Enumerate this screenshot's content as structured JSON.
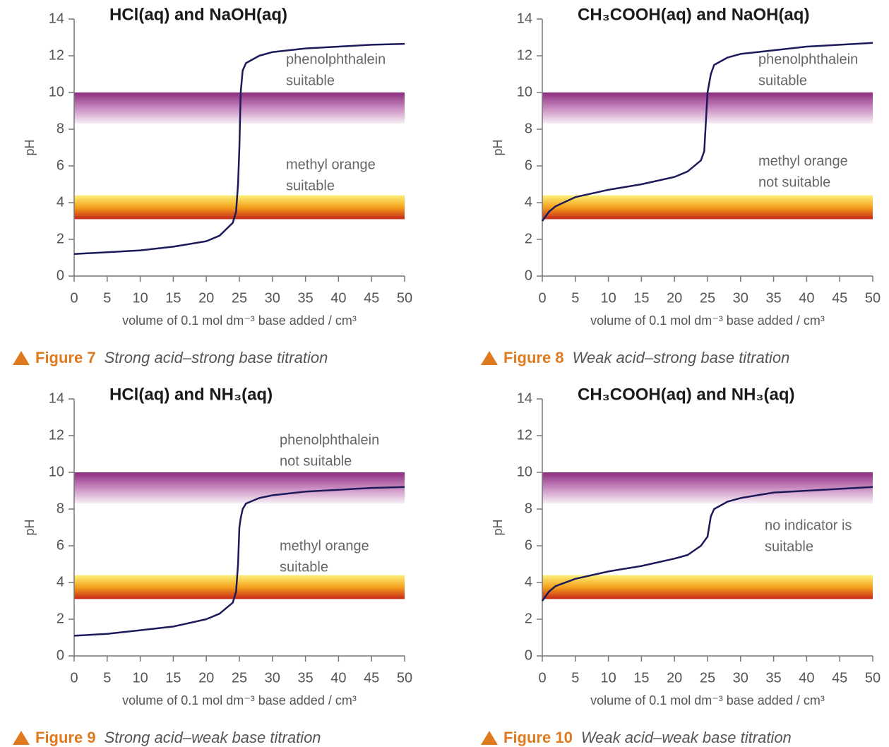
{
  "chart_data": [
    {
      "type": "line",
      "title": "HCl(aq) and NaOH(aq)",
      "xlabel": "volume of 0.1 mol dm⁻³ base added / cm³",
      "ylabel": "pH",
      "xlim": [
        0,
        50
      ],
      "ylim": [
        0,
        14
      ],
      "xticks": [
        0,
        5,
        10,
        15,
        20,
        25,
        30,
        35,
        40,
        45,
        50
      ],
      "yticks": [
        0,
        2,
        4,
        6,
        8,
        10,
        12,
        14
      ],
      "x": [
        0,
        5,
        10,
        15,
        20,
        22,
        24,
        24.5,
        24.8,
        25,
        25.2,
        25.5,
        26,
        28,
        30,
        35,
        40,
        45,
        50
      ],
      "series": [
        {
          "color": "#1d1a5a",
          "values": [
            1.2,
            1.3,
            1.4,
            1.6,
            1.9,
            2.2,
            2.9,
            3.5,
            5,
            7,
            10,
            11.2,
            11.6,
            12.0,
            12.2,
            12.4,
            12.5,
            12.6,
            12.65
          ]
        }
      ],
      "bands": [
        {
          "range": [
            8.3,
            10
          ],
          "colors": [
            "#8b2c7f",
            "#c98bc0",
            "#f8f0f6"
          ]
        },
        {
          "range": [
            3.1,
            4.4
          ],
          "colors": [
            "#fdf07a",
            "#f4a21c",
            "#c8281a"
          ]
        }
      ],
      "annotations": [
        [
          "phenolphthalein",
          "suitable"
        ],
        [
          "methyl orange",
          "suitable"
        ]
      ],
      "figure": "Figure 7",
      "caption": "Strong acid–strong base titration"
    },
    {
      "type": "line",
      "title": "CH₃COOH(aq) and NaOH(aq)",
      "xlabel": "volume of 0.1 mol dm⁻³ base added / cm³",
      "ylabel": "pH",
      "xlim": [
        0,
        50
      ],
      "ylim": [
        0,
        14
      ],
      "xticks": [
        0,
        5,
        10,
        15,
        20,
        25,
        30,
        35,
        40,
        45,
        50
      ],
      "yticks": [
        0,
        2,
        4,
        6,
        8,
        10,
        12,
        14
      ],
      "x": [
        0,
        1,
        2,
        5,
        10,
        15,
        20,
        22,
        24,
        24.5,
        25,
        25.5,
        26,
        28,
        30,
        35,
        40,
        45,
        50
      ],
      "series": [
        {
          "color": "#1d1a5a",
          "values": [
            3.0,
            3.5,
            3.8,
            4.3,
            4.7,
            5.0,
            5.4,
            5.7,
            6.3,
            6.8,
            10,
            11,
            11.5,
            11.9,
            12.1,
            12.3,
            12.5,
            12.6,
            12.7
          ]
        }
      ],
      "bands": [
        {
          "range": [
            8.3,
            10
          ],
          "colors": [
            "#8b2c7f",
            "#c98bc0",
            "#f8f0f6"
          ]
        },
        {
          "range": [
            3.1,
            4.4
          ],
          "colors": [
            "#fdf07a",
            "#f4a21c",
            "#c8281a"
          ]
        }
      ],
      "annotations": [
        [
          "phenolphthalein",
          "suitable"
        ],
        [
          "methyl orange",
          "not suitable"
        ]
      ],
      "figure": "Figure 8",
      "caption": "Weak acid–strong base titration"
    },
    {
      "type": "line",
      "title": "HCl(aq) and NH₃(aq)",
      "xlabel": "volume of 0.1 mol dm⁻³ base added / cm³",
      "ylabel": "pH",
      "xlim": [
        0,
        50
      ],
      "ylim": [
        0,
        14
      ],
      "xticks": [
        0,
        5,
        10,
        15,
        20,
        25,
        30,
        35,
        40,
        45,
        50
      ],
      "yticks": [
        0,
        2,
        4,
        6,
        8,
        10,
        12,
        14
      ],
      "x": [
        0,
        5,
        10,
        15,
        20,
        22,
        24,
        24.5,
        24.8,
        25,
        25.2,
        25.5,
        26,
        28,
        30,
        35,
        40,
        45,
        50
      ],
      "series": [
        {
          "color": "#1d1a5a",
          "values": [
            1.1,
            1.2,
            1.4,
            1.6,
            2.0,
            2.3,
            2.9,
            3.5,
            5,
            7,
            7.5,
            8.0,
            8.3,
            8.6,
            8.75,
            8.95,
            9.05,
            9.15,
            9.2
          ]
        }
      ],
      "bands": [
        {
          "range": [
            8.3,
            10
          ],
          "colors": [
            "#8b2c7f",
            "#c98bc0",
            "#f8f0f6"
          ]
        },
        {
          "range": [
            3.1,
            4.4
          ],
          "colors": [
            "#fdf07a",
            "#f4a21c",
            "#c8281a"
          ]
        }
      ],
      "annotations": [
        [
          "phenolphthalein",
          "not suitable"
        ],
        [
          "methyl orange",
          "suitable"
        ]
      ],
      "figure": "Figure 9",
      "caption": "Strong acid–weak base titration"
    },
    {
      "type": "line",
      "title": "CH₃COOH(aq) and NH₃(aq)",
      "xlabel": "volume of 0.1 mol dm⁻³ base added / cm³",
      "ylabel": "pH",
      "xlim": [
        0,
        50
      ],
      "ylim": [
        0,
        14
      ],
      "xticks": [
        0,
        5,
        10,
        15,
        20,
        25,
        30,
        35,
        40,
        45,
        50
      ],
      "yticks": [
        0,
        2,
        4,
        6,
        8,
        10,
        12,
        14
      ],
      "x": [
        0,
        1,
        2,
        5,
        10,
        15,
        20,
        22,
        24,
        25,
        25.5,
        26,
        28,
        30,
        35,
        40,
        45,
        50
      ],
      "series": [
        {
          "color": "#1d1a5a",
          "values": [
            3.0,
            3.5,
            3.8,
            4.2,
            4.6,
            4.9,
            5.3,
            5.5,
            6.0,
            6.5,
            7.6,
            8.0,
            8.4,
            8.6,
            8.9,
            9.0,
            9.1,
            9.2
          ]
        }
      ],
      "bands": [
        {
          "range": [
            8.3,
            10
          ],
          "colors": [
            "#8b2c7f",
            "#c98bc0",
            "#f8f0f6"
          ]
        },
        {
          "range": [
            3.1,
            4.4
          ],
          "colors": [
            "#fdf07a",
            "#f4a21c",
            "#c8281a"
          ]
        }
      ],
      "annotations": [
        [
          "no indicator is",
          "suitable"
        ]
      ],
      "figure": "Figure 10",
      "caption": "Weak acid–weak base titration"
    }
  ]
}
